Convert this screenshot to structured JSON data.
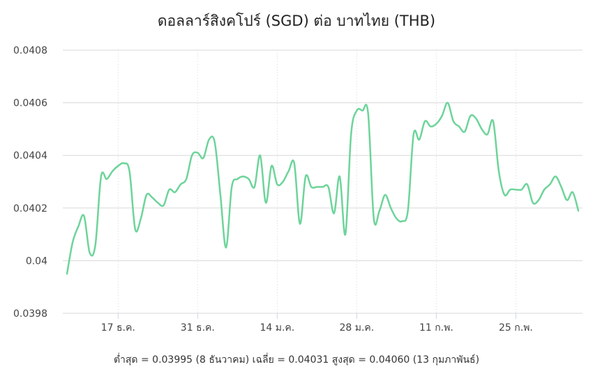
{
  "chart_data": {
    "type": "line",
    "title": "ดอลลาร์สิงคโปร์ (SGD) ต่อ บาทไทย (THB)",
    "summary": "ต่ำสุด = 0.03995 (8 ธันวาคม) เฉลี่ย = 0.04031 สูงสุด = 0.04060 (13 กุมภาพันธ์)",
    "xlabel": "",
    "ylabel": "",
    "ylim": [
      0.0398,
      0.0408
    ],
    "y_ticks": [
      "0.0408",
      "0.0406",
      "0.0404",
      "0.0402",
      "0.04",
      "0.0398"
    ],
    "y_tick_values": [
      0.0408,
      0.0406,
      0.0404,
      0.0402,
      0.04,
      0.0398
    ],
    "x_ticks": [
      "17 ธ.ค.",
      "31 ธ.ค.",
      "14 ม.ค.",
      "28 ม.ค.",
      "11 ก.พ.",
      "25 ก.พ."
    ],
    "x_tick_dates": [
      "2023-12-17",
      "2023-12-31",
      "2024-01-14",
      "2024-01-28",
      "2024-02-11",
      "2024-02-25"
    ],
    "grid": true,
    "colors": {
      "line": "#6dd49a",
      "grid": "#d8d8d8",
      "axis": "#ccd6eb",
      "tick_text": "#444444"
    },
    "series": [
      {
        "points": [
          [
            "2023-12-08",
            0.03995
          ],
          [
            "2023-12-09",
            0.04007
          ],
          [
            "2023-12-10",
            0.04013
          ],
          [
            "2023-12-11",
            0.04017
          ],
          [
            "2023-12-12",
            0.04003
          ],
          [
            "2023-12-13",
            0.04006
          ],
          [
            "2023-12-14",
            0.04032
          ],
          [
            "2023-12-15",
            0.04031
          ],
          [
            "2023-12-16",
            0.04034
          ],
          [
            "2023-12-17",
            0.04036
          ],
          [
            "2023-12-18",
            0.04037
          ],
          [
            "2023-12-19",
            0.04034
          ],
          [
            "2023-12-20",
            0.04012
          ],
          [
            "2023-12-21",
            0.04016
          ],
          [
            "2023-12-22",
            0.04025
          ],
          [
            "2023-12-23",
            0.04024
          ],
          [
            "2023-12-24",
            0.04022
          ],
          [
            "2023-12-25",
            0.04021
          ],
          [
            "2023-12-26",
            0.04027
          ],
          [
            "2023-12-27",
            0.04026
          ],
          [
            "2023-12-28",
            0.04029
          ],
          [
            "2023-12-29",
            0.04031
          ],
          [
            "2023-12-30",
            0.0404
          ],
          [
            "2023-12-31",
            0.04041
          ],
          [
            "2024-01-01",
            0.04039
          ],
          [
            "2024-01-02",
            0.04046
          ],
          [
            "2024-01-03",
            0.04045
          ],
          [
            "2024-01-04",
            0.04025
          ],
          [
            "2024-01-05",
            0.04005
          ],
          [
            "2024-01-06",
            0.04028
          ],
          [
            "2024-01-07",
            0.04031
          ],
          [
            "2024-01-08",
            0.04032
          ],
          [
            "2024-01-09",
            0.04031
          ],
          [
            "2024-01-10",
            0.04028
          ],
          [
            "2024-01-11",
            0.0404
          ],
          [
            "2024-01-12",
            0.04022
          ],
          [
            "2024-01-13",
            0.04036
          ],
          [
            "2024-01-14",
            0.04029
          ],
          [
            "2024-01-15",
            0.0403
          ],
          [
            "2024-01-16",
            0.04034
          ],
          [
            "2024-01-17",
            0.04037
          ],
          [
            "2024-01-18",
            0.04014
          ],
          [
            "2024-01-19",
            0.04032
          ],
          [
            "2024-01-20",
            0.04028
          ],
          [
            "2024-01-21",
            0.04028
          ],
          [
            "2024-01-22",
            0.04028
          ],
          [
            "2024-01-23",
            0.04028
          ],
          [
            "2024-01-24",
            0.04018
          ],
          [
            "2024-01-25",
            0.04032
          ],
          [
            "2024-01-26",
            0.0401
          ],
          [
            "2024-01-27",
            0.04048
          ],
          [
            "2024-01-28",
            0.04057
          ],
          [
            "2024-01-29",
            0.04057
          ],
          [
            "2024-01-30",
            0.04056
          ],
          [
            "2024-01-31",
            0.04016
          ],
          [
            "2024-02-01",
            0.04019
          ],
          [
            "2024-02-02",
            0.04025
          ],
          [
            "2024-02-03",
            0.0402
          ],
          [
            "2024-02-04",
            0.04016
          ],
          [
            "2024-02-05",
            0.04015
          ],
          [
            "2024-02-06",
            0.04019
          ],
          [
            "2024-02-07",
            0.04048
          ],
          [
            "2024-02-08",
            0.04046
          ],
          [
            "2024-02-09",
            0.04053
          ],
          [
            "2024-02-10",
            0.04051
          ],
          [
            "2024-02-11",
            0.04052
          ],
          [
            "2024-02-12",
            0.04055
          ],
          [
            "2024-02-13",
            0.0406
          ],
          [
            "2024-02-14",
            0.04053
          ],
          [
            "2024-02-15",
            0.04051
          ],
          [
            "2024-02-16",
            0.04049
          ],
          [
            "2024-02-17",
            0.04055
          ],
          [
            "2024-02-18",
            0.04054
          ],
          [
            "2024-02-19",
            0.0405
          ],
          [
            "2024-02-20",
            0.04048
          ],
          [
            "2024-02-21",
            0.04053
          ],
          [
            "2024-02-22",
            0.04034
          ],
          [
            "2024-02-23",
            0.04025
          ],
          [
            "2024-02-24",
            0.04027
          ],
          [
            "2024-02-25",
            0.04027
          ],
          [
            "2024-02-26",
            0.04027
          ],
          [
            "2024-02-27",
            0.04029
          ],
          [
            "2024-02-28",
            0.04022
          ],
          [
            "2024-02-29",
            0.04023
          ],
          [
            "2024-03-01",
            0.04027
          ],
          [
            "2024-03-02",
            0.04029
          ],
          [
            "2024-03-03",
            0.04032
          ],
          [
            "2024-03-04",
            0.04028
          ],
          [
            "2024-03-05",
            0.04023
          ],
          [
            "2024-03-06",
            0.04026
          ],
          [
            "2024-03-07",
            0.04019
          ]
        ]
      }
    ]
  }
}
